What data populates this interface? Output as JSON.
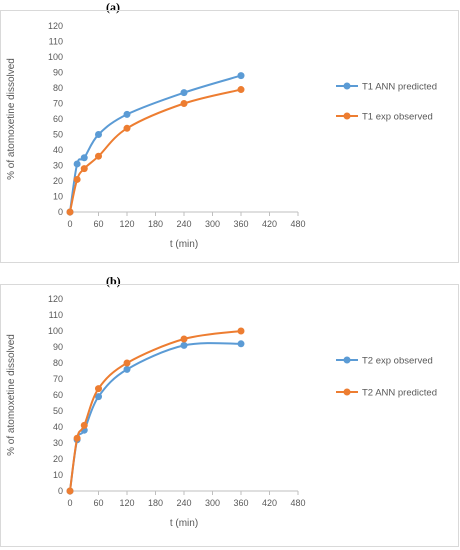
{
  "panels": [
    {
      "label": "(a)"
    },
    {
      "label": "(b)"
    }
  ],
  "chart_data": [
    {
      "type": "line",
      "xlabel": "t (min)",
      "ylabel": "% of atomoxetine dissolved",
      "xlim": [
        0,
        480
      ],
      "ylim": [
        0,
        120
      ],
      "xticks": [
        0,
        60,
        120,
        180,
        240,
        300,
        360,
        420,
        480
      ],
      "yticks": [
        0,
        10,
        20,
        30,
        40,
        50,
        60,
        70,
        80,
        90,
        100,
        110,
        120
      ],
      "grid": false,
      "legend_position": "right",
      "series": [
        {
          "name": "T1 ANN predicted",
          "color": "#5b9bd5",
          "x": [
            0,
            15,
            30,
            60,
            120,
            240,
            360
          ],
          "y": [
            0,
            31,
            35,
            50,
            63,
            77,
            88
          ]
        },
        {
          "name": "T1 exp observed",
          "color": "#ed7d31",
          "x": [
            0,
            15,
            30,
            60,
            120,
            240,
            360
          ],
          "y": [
            0,
            21,
            28,
            36,
            54,
            70,
            79
          ]
        }
      ]
    },
    {
      "type": "line",
      "xlabel": "t (min)",
      "ylabel": "% of atomoxetine dissolved",
      "xlim": [
        0,
        480
      ],
      "ylim": [
        0,
        120
      ],
      "xticks": [
        0,
        60,
        120,
        180,
        240,
        300,
        360,
        420,
        480
      ],
      "yticks": [
        0,
        10,
        20,
        30,
        40,
        50,
        60,
        70,
        80,
        90,
        100,
        110,
        120
      ],
      "grid": false,
      "legend_position": "right",
      "series": [
        {
          "name": "T2 exp observed",
          "color": "#5b9bd5",
          "x": [
            0,
            15,
            30,
            60,
            120,
            240,
            360
          ],
          "y": [
            0,
            32,
            38,
            59,
            76,
            91,
            92
          ]
        },
        {
          "name": "T2 ANN predicted",
          "color": "#ed7d31",
          "x": [
            0,
            15,
            30,
            60,
            120,
            240,
            360
          ],
          "y": [
            0,
            33,
            41,
            64,
            80,
            95,
            100
          ]
        }
      ]
    }
  ]
}
